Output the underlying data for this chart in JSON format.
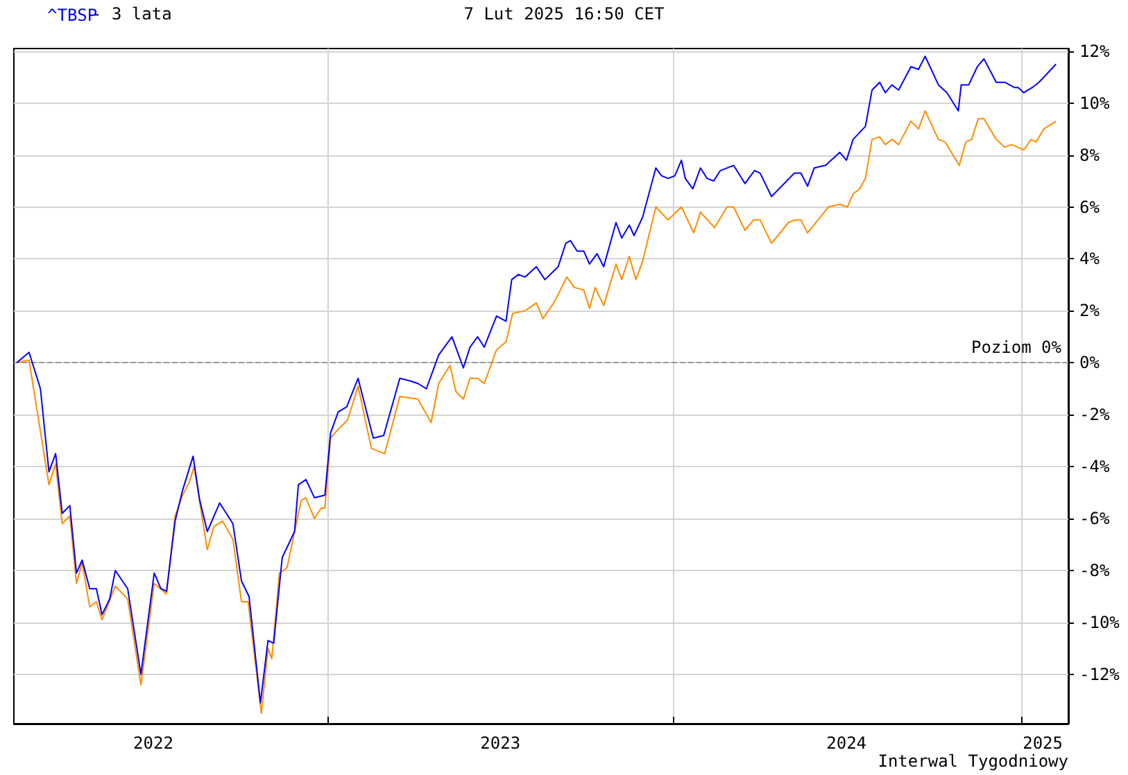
{
  "chart_data": {
    "type": "line",
    "subtitle": "- 3 lata",
    "annotations": [
      "7 Lut 2025 16:50 CET",
      "Interwal Tygodniowy"
    ],
    "xlim": [
      "2022-02-04",
      "2025-02-20"
    ],
    "xticks": [
      {
        "value": "2022-07-01",
        "label": "2022"
      },
      {
        "value": "2023-01-01",
        "label": null
      },
      {
        "value": "2023-07-02",
        "label": "2023"
      },
      {
        "value": "2024-01-01",
        "label": null
      },
      {
        "value": "2024-07-01",
        "label": "2024"
      },
      {
        "value": "2025-01-01",
        "label": null
      },
      {
        "value": "2025-01-24",
        "label": "2025"
      }
    ],
    "ylim": [
      -13.9,
      12.1
    ],
    "yticks": [
      {
        "value": -12,
        "label": "-12%"
      },
      {
        "value": -10,
        "label": "-10%"
      },
      {
        "value": -8,
        "label": "-8%"
      },
      {
        "value": -6,
        "label": "-6%"
      },
      {
        "value": -4,
        "label": "-4%"
      },
      {
        "value": -2,
        "label": "-2%"
      },
      {
        "value": 0,
        "label": "0%"
      },
      {
        "value": 2,
        "label": "2%"
      },
      {
        "value": 4,
        "label": "4%"
      },
      {
        "value": 6,
        "label": "6%"
      },
      {
        "value": 8,
        "label": "8%"
      },
      {
        "value": 10,
        "label": "10%"
      },
      {
        "value": 12,
        "label": "12%"
      }
    ],
    "grid": true,
    "legend": "top left",
    "marker": "none",
    "line_style": "solid",
    "ref_lines": [
      {
        "axis": "y",
        "value": 0,
        "label": "Poziom 0%",
        "color": "#999999",
        "line_style": "dashed"
      }
    ],
    "series": [
      {
        "name": "^TBSP",
        "color": "#0000ff",
        "x": [
          "2022-02-07",
          "2022-02-20",
          "2022-03-04",
          "2022-03-13",
          "2022-03-20",
          "2022-03-27",
          "2022-04-04",
          "2022-04-11",
          "2022-04-17",
          "2022-04-25",
          "2022-05-02",
          "2022-05-08",
          "2022-05-16",
          "2022-05-22",
          "2022-06-04",
          "2022-06-18",
          "2022-07-02",
          "2022-07-09",
          "2022-07-15",
          "2022-07-24",
          "2022-08-01",
          "2022-08-12",
          "2022-08-19",
          "2022-08-27",
          "2022-09-09",
          "2022-09-23",
          "2022-10-02",
          "2022-10-10",
          "2022-10-22",
          "2022-10-30",
          "2022-11-05",
          "2022-11-14",
          "2022-11-27",
          "2022-12-01",
          "2022-12-09",
          "2022-12-18",
          "2022-12-29",
          "2023-01-04",
          "2023-01-12",
          "2023-01-21",
          "2023-02-02",
          "2023-02-18",
          "2023-03-01",
          "2023-03-18",
          "2023-03-29",
          "2023-04-06",
          "2023-04-15",
          "2023-04-28",
          "2023-05-12",
          "2023-05-24",
          "2023-05-31",
          "2023-06-08",
          "2023-06-15",
          "2023-06-28",
          "2023-07-08",
          "2023-07-14",
          "2023-07-21",
          "2023-07-28",
          "2023-08-09",
          "2023-08-18",
          "2023-09-01",
          "2023-09-09",
          "2023-09-14",
          "2023-09-21",
          "2023-09-28",
          "2023-10-04",
          "2023-10-12",
          "2023-10-19",
          "2023-11-01",
          "2023-11-07",
          "2023-11-15",
          "2023-11-20",
          "2023-11-29",
          "2023-12-13",
          "2023-12-19",
          "2023-12-26",
          "2024-01-02",
          "2024-01-09",
          "2024-01-13",
          "2024-01-21",
          "2024-01-29",
          "2024-02-05",
          "2024-02-12",
          "2024-02-19",
          "2024-03-04",
          "2024-03-16",
          "2024-03-26",
          "2024-04-01",
          "2024-04-13",
          "2024-05-07",
          "2024-05-14",
          "2024-05-21",
          "2024-05-28",
          "2024-06-09",
          "2024-06-24",
          "2024-07-01",
          "2024-07-08",
          "2024-07-21",
          "2024-07-28",
          "2024-08-05",
          "2024-08-11",
          "2024-08-18",
          "2024-08-25",
          "2024-09-07",
          "2024-09-15",
          "2024-09-22",
          "2024-10-06",
          "2024-10-15",
          "2024-10-27",
          "2024-10-30",
          "2024-11-07",
          "2024-11-16",
          "2024-11-23",
          "2024-12-06",
          "2024-12-15",
          "2024-12-25",
          "2024-12-29",
          "2025-01-04",
          "2025-01-13",
          "2025-01-20",
          "2025-02-07"
        ],
        "values": [
          0,
          0.4,
          -1,
          -4.2,
          -3.5,
          -5.8,
          -5.5,
          -8.1,
          -7.6,
          -8.7,
          -8.7,
          -9.7,
          -9.1,
          -8,
          -8.7,
          -12,
          -8.1,
          -8.7,
          -8.8,
          -6.1,
          -4.9,
          -3.6,
          -5.3,
          -6.5,
          -5.4,
          -6.2,
          -8.4,
          -9,
          -13.1,
          -10.7,
          -10.8,
          -7.5,
          -6.5,
          -4.7,
          -4.5,
          -5.2,
          -5.1,
          -2.7,
          -1.9,
          -1.7,
          -0.6,
          -2.9,
          -2.8,
          -0.6,
          -0.7,
          -0.8,
          -1,
          0.3,
          1,
          -0.2,
          0.6,
          1,
          0.6,
          1.8,
          1.6,
          3.2,
          3.4,
          3.3,
          3.7,
          3.2,
          3.7,
          4.6,
          4.7,
          4.3,
          4.3,
          3.8,
          4.2,
          3.7,
          5.4,
          4.8,
          5.3,
          4.9,
          5.6,
          7.5,
          7.2,
          7.1,
          7.2,
          7.8,
          7.1,
          6.7,
          7.5,
          7.1,
          7,
          7.4,
          7.6,
          6.9,
          7.4,
          7.3,
          6.4,
          7.3,
          7.3,
          6.8,
          7.5,
          7.6,
          8.1,
          7.8,
          8.6,
          9.1,
          10.5,
          10.8,
          10.4,
          10.7,
          10.5,
          11.4,
          11.3,
          11.8,
          10.7,
          10.4,
          9.7,
          10.7,
          10.7,
          11.4,
          11.7,
          10.8,
          10.8,
          10.6,
          10.6,
          10.4,
          10.6,
          10.8,
          11.5
        ]
      },
      {
        "color": "#ff8c00",
        "x": [
          "2022-02-07",
          "2022-02-20",
          "2022-03-13",
          "2022-03-20",
          "2022-03-27",
          "2022-04-04",
          "2022-04-11",
          "2022-04-17",
          "2022-04-25",
          "2022-05-02",
          "2022-05-08",
          "2022-05-22",
          "2022-06-04",
          "2022-06-18",
          "2022-07-02",
          "2022-07-15",
          "2022-07-24",
          "2022-08-01",
          "2022-08-08",
          "2022-08-13",
          "2022-08-27",
          "2022-09-03",
          "2022-09-12",
          "2022-09-23",
          "2022-10-02",
          "2022-10-09",
          "2022-10-23",
          "2022-10-30",
          "2022-11-03",
          "2022-11-11",
          "2022-11-19",
          "2022-12-04",
          "2022-12-09",
          "2022-12-18",
          "2022-12-25",
          "2022-12-29",
          "2023-01-04",
          "2023-01-11",
          "2023-01-22",
          "2023-02-02",
          "2023-02-16",
          "2023-03-02",
          "2023-03-18",
          "2023-04-06",
          "2023-04-20",
          "2023-04-28",
          "2023-05-10",
          "2023-05-16",
          "2023-05-24",
          "2023-05-31",
          "2023-06-08",
          "2023-06-15",
          "2023-06-28",
          "2023-07-08",
          "2023-07-15",
          "2023-07-28",
          "2023-08-09",
          "2023-08-16",
          "2023-08-29",
          "2023-09-10",
          "2023-09-18",
          "2023-09-28",
          "2023-10-04",
          "2023-10-10",
          "2023-10-19",
          "2023-11-01",
          "2023-11-07",
          "2023-11-15",
          "2023-11-22",
          "2023-11-29",
          "2023-12-13",
          "2023-12-26",
          "2024-01-09",
          "2024-01-22",
          "2024-01-29",
          "2024-02-13",
          "2024-02-26",
          "2024-03-04",
          "2024-03-16",
          "2024-03-25",
          "2024-04-01",
          "2024-04-13",
          "2024-05-01",
          "2024-05-08",
          "2024-05-14",
          "2024-05-21",
          "2024-06-12",
          "2024-06-24",
          "2024-07-02",
          "2024-07-08",
          "2024-07-15",
          "2024-07-21",
          "2024-07-28",
          "2024-08-05",
          "2024-08-11",
          "2024-08-18",
          "2024-08-25",
          "2024-09-07",
          "2024-09-15",
          "2024-09-22",
          "2024-10-06",
          "2024-10-13",
          "2024-10-28",
          "2024-11-04",
          "2024-11-10",
          "2024-11-17",
          "2024-11-23",
          "2024-12-06",
          "2024-12-15",
          "2024-12-22",
          "2025-01-04",
          "2025-01-12",
          "2025-01-17",
          "2025-01-25",
          "2025-02-07"
        ],
        "values": [
          0,
          0.1,
          -4.7,
          -3.9,
          -6.2,
          -5.9,
          -8.5,
          -7.7,
          -9.4,
          -9.2,
          -9.9,
          -8.6,
          -9.1,
          -12.4,
          -8.5,
          -8.9,
          -5.9,
          -5.1,
          -4.6,
          -4,
          -7.2,
          -6.3,
          -6.1,
          -6.8,
          -9.2,
          -9.2,
          -13.5,
          -11,
          -11.4,
          -8.1,
          -7.9,
          -5.3,
          -5.2,
          -6,
          -5.6,
          -5.6,
          -2.9,
          -2.6,
          -2.2,
          -0.9,
          -3.3,
          -3.5,
          -1.3,
          -1.4,
          -2.3,
          -0.8,
          -0.1,
          -1.1,
          -1.4,
          -0.6,
          -0.6,
          -0.8,
          0.5,
          0.8,
          1.9,
          2,
          2.3,
          1.7,
          2.4,
          3.3,
          2.9,
          2.8,
          2.1,
          2.9,
          2.2,
          3.8,
          3.2,
          4.1,
          3.2,
          3.9,
          6,
          5.5,
          6,
          5,
          5.8,
          5.2,
          6,
          6,
          5.1,
          5.5,
          5.5,
          4.6,
          5.4,
          5.5,
          5.5,
          5,
          6,
          6.1,
          6,
          6.5,
          6.7,
          7.1,
          8.6,
          8.7,
          8.4,
          8.6,
          8.4,
          9.3,
          9,
          9.7,
          8.6,
          8.5,
          7.6,
          8.5,
          8.6,
          9.4,
          9.4,
          8.6,
          8.3,
          8.4,
          8.2,
          8.6,
          8.5,
          9,
          9.3
        ]
      }
    ]
  }
}
